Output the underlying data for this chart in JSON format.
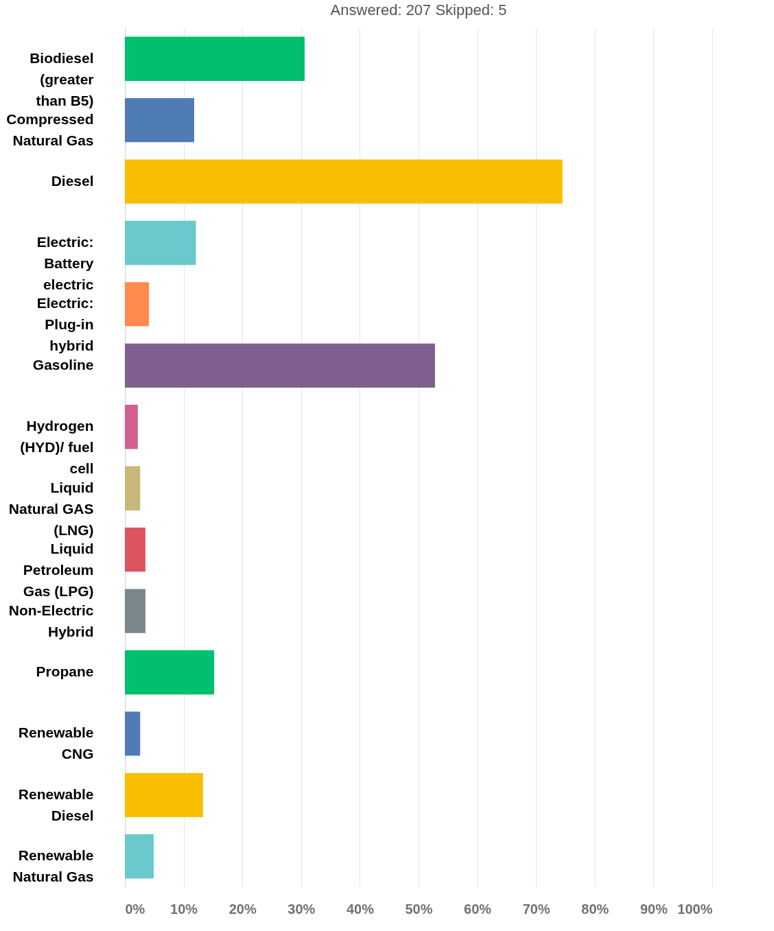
{
  "chart_data": {
    "type": "bar",
    "orientation": "horizontal",
    "title": "Answered: 207        Skipped: 5",
    "categories": [
      "Biodiesel (greater than B5)",
      "Compressed Natural Gas",
      "Diesel",
      "Electric: Battery electric",
      "Electric: Plug-in hybrid",
      "Gasoline",
      "Hydrogen (HYD)/ fuel cell",
      "Liquid Natural GAS (LNG)",
      "Liquid Petroleum Gas (LPG)",
      "Non-Electric Hybrid",
      "Propane",
      "Renewable CNG",
      "Renewable Diesel",
      "Renewable Natural Gas"
    ],
    "values": [
      30.6,
      11.8,
      74.5,
      12.1,
      4.1,
      52.8,
      2.2,
      2.6,
      3.5,
      3.5,
      15.2,
      2.6,
      13.3,
      4.9
    ],
    "colors": [
      "#00bf6f",
      "#507cb6",
      "#f9be00",
      "#6bc8cd",
      "#ff8b4f",
      "#7f5f90",
      "#d25f90",
      "#c7b879",
      "#dd5360",
      "#7b868c",
      "#00bf6f",
      "#507cb6",
      "#f9be00",
      "#6bc8cd"
    ],
    "xlim": [
      0,
      100
    ],
    "xticks": [
      {
        "value": 0,
        "label": "0%"
      },
      {
        "value": 10,
        "label": "10%"
      },
      {
        "value": 20,
        "label": "20%"
      },
      {
        "value": 30,
        "label": "30%"
      },
      {
        "value": 40,
        "label": "40%"
      },
      {
        "value": 50,
        "label": "50%"
      },
      {
        "value": 60,
        "label": "60%"
      },
      {
        "value": 70,
        "label": "70%"
      },
      {
        "value": 80,
        "label": "80%"
      },
      {
        "value": 90,
        "label": "90%"
      },
      {
        "value": 100,
        "label": "100%"
      }
    ],
    "grid": "x"
  }
}
